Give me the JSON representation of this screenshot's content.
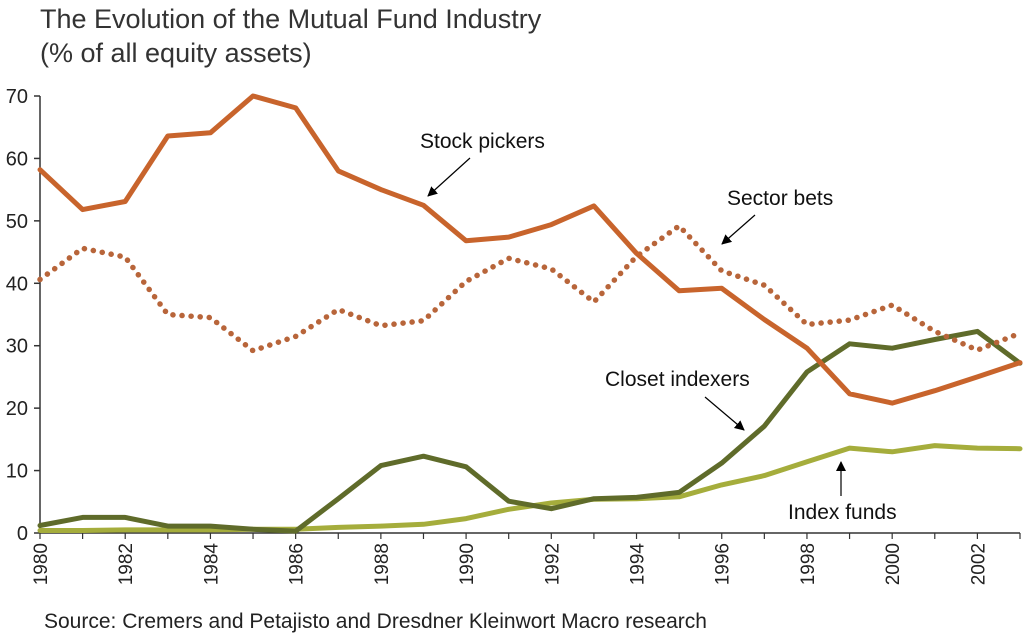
{
  "title_line1": "The Evolution of the Mutual Fund Industry",
  "title_line2": "(% of all equity assets)",
  "source": "Source: Cremers and Petajisto and Dresdner Kleinwort Macro research",
  "colors": {
    "stock_pickers": "#C8642C",
    "sector_bets": "#B8653A",
    "closet_indexers": "#5F6B2A",
    "index_funds": "#A5AD3C",
    "axis": "#333333"
  },
  "chart_data": {
    "type": "line",
    "title": "The Evolution of the Mutual Fund Industry (% of all equity assets)",
    "xlabel": "",
    "ylabel": "",
    "xlim": [
      1980,
      2003
    ],
    "ylim": [
      0,
      70
    ],
    "yticks": [
      0,
      10,
      20,
      30,
      40,
      50,
      60,
      70
    ],
    "xticks": [
      1980,
      1982,
      1984,
      1986,
      1988,
      1990,
      1992,
      1994,
      1996,
      1998,
      2000,
      2002
    ],
    "grid": false,
    "x": [
      1980,
      1981,
      1982,
      1983,
      1984,
      1985,
      1986,
      1987,
      1988,
      1989,
      1990,
      1991,
      1992,
      1993,
      1994,
      1995,
      1996,
      1997,
      1998,
      1999,
      2000,
      2001,
      2002,
      2003
    ],
    "series": [
      {
        "name": "Stock pickers",
        "style": "solid",
        "values": [
          58.2,
          51.8,
          53.1,
          63.6,
          64.1,
          70.0,
          68.1,
          58.0,
          55.0,
          52.5,
          46.8,
          47.4,
          49.4,
          52.4,
          44.8,
          38.8,
          39.2,
          34.2,
          29.6,
          22.3,
          20.8,
          22.8,
          25.0,
          27.3
        ]
      },
      {
        "name": "Sector bets",
        "style": "dotted",
        "values": [
          40.6,
          45.6,
          44.2,
          35.0,
          34.5,
          29.2,
          31.5,
          35.8,
          33.2,
          34.0,
          40.3,
          44.0,
          42.3,
          37.0,
          44.3,
          49.2,
          42.0,
          39.7,
          33.4,
          34.1,
          36.5,
          32.3,
          29.3,
          32.0
        ]
      },
      {
        "name": "Closet indexers",
        "style": "solid",
        "values": [
          1.2,
          2.5,
          2.5,
          1.1,
          1.1,
          0.6,
          0.3,
          5.5,
          10.8,
          12.3,
          10.6,
          5.1,
          3.9,
          5.5,
          5.7,
          6.5,
          11.2,
          17.1,
          25.8,
          30.3,
          29.6,
          31.0,
          32.3,
          27.2
        ]
      },
      {
        "name": "Index funds",
        "style": "solid",
        "values": [
          0.4,
          0.4,
          0.5,
          0.5,
          0.5,
          0.6,
          0.6,
          0.9,
          1.1,
          1.4,
          2.3,
          3.8,
          4.8,
          5.4,
          5.5,
          5.8,
          7.7,
          9.2,
          11.4,
          13.6,
          13.0,
          14.0,
          13.6,
          13.5
        ]
      }
    ],
    "annotations": [
      {
        "text": "Stock pickers",
        "series": "Stock pickers"
      },
      {
        "text": "Sector bets",
        "series": "Sector bets"
      },
      {
        "text": "Closet indexers",
        "series": "Closet indexers"
      },
      {
        "text": "Index funds",
        "series": "Index funds"
      }
    ]
  }
}
